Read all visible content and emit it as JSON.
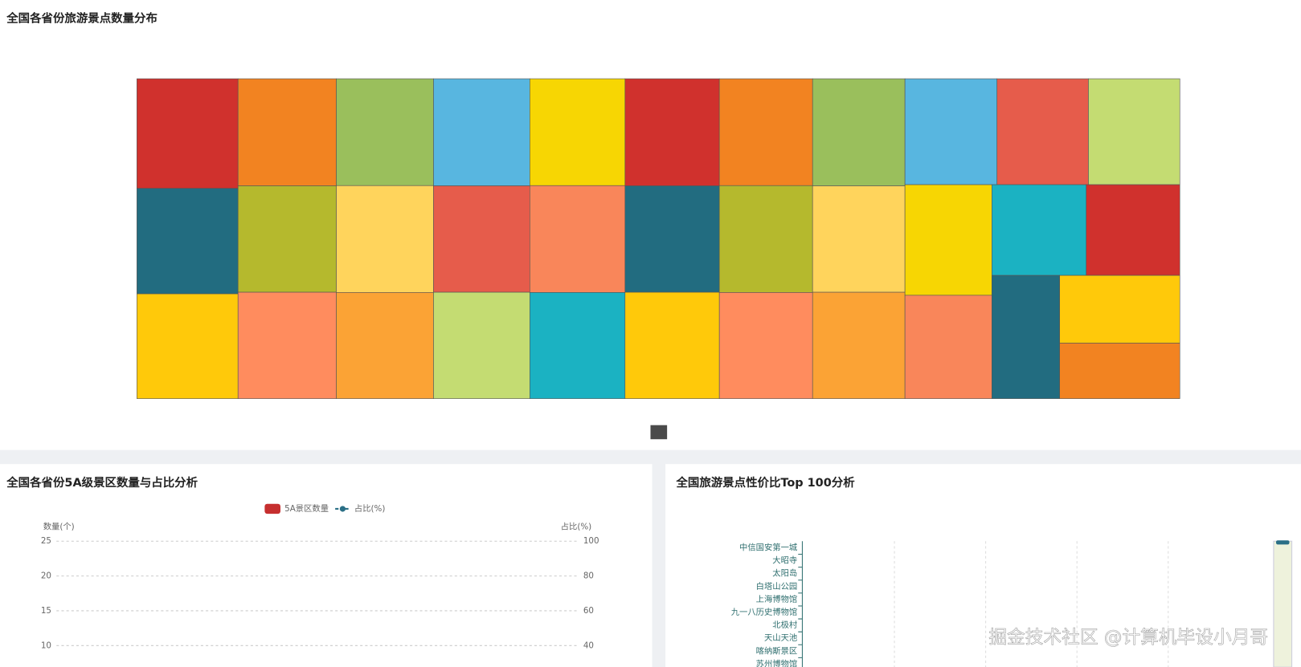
{
  "panels": [
    {
      "chart_data": {
        "type": "treemap",
        "title": "全国各省份旅游景点数量分布",
        "values": [
          158,
          152,
          151,
          150,
          149,
          149,
          148,
          148,
          147,
          147,
          146,
          146,
          145,
          145,
          144,
          144,
          143,
          143,
          142,
          142,
          141,
          141,
          140,
          140,
          139,
          138,
          138,
          137,
          128,
          122,
          121,
          119,
          116,
          95
        ],
        "colors": [
          "#d0312d",
          "#226c80",
          "#ffc90a",
          "#f28321",
          "#b5b92d",
          "#ff8c5e",
          "#9abf5c",
          "#ffd45c",
          "#fba335",
          "#58b6e0",
          "#e65c4b",
          "#c4dc72",
          "#f7d603",
          "#f9865a",
          "#1bb2c2",
          "#d0312d",
          "#226c80",
          "#ffc90a",
          "#f28321",
          "#b5b92d",
          "#ff8c5e",
          "#9abf5c",
          "#ffd45c",
          "#fba335",
          "#58b6e0",
          "#e65c4b",
          "#c4dc72",
          "#f7d603",
          "#f9865a",
          "#1bb2c2",
          "#d0312d",
          "#226c80",
          "#ffc90a",
          "#f28321"
        ]
      }
    },
    {
      "chart_data": {
        "type": "bar",
        "title": "全国各省份5A级景区数量与占比分析",
        "y_axis_label": "数量(个)",
        "y2_axis_label": "占比(%)",
        "categories": [],
        "series": [
          {
            "name": "5A景区数量",
            "color": "#c62f2f",
            "values": []
          },
          {
            "name": "占比(%)",
            "color": "#2a6f86",
            "values": [],
            "axis": "y2",
            "type": "line"
          }
        ],
        "ylim": [
          0,
          25
        ],
        "yticks": [
          10,
          15,
          20,
          25
        ],
        "y2lim": [
          0,
          100
        ],
        "y2ticks": [
          40,
          60,
          80,
          100
        ],
        "grid": true
      }
    },
    {
      "chart_data": {
        "type": "hbar",
        "title": "全国旅游景点性价比Top 100分析",
        "categories": [
          "中信国安第一城",
          "大昭寺",
          "太阳岛",
          "白塔山公园",
          "上海博物馆",
          "九一八历史博物馆",
          "北极村",
          "天山天池",
          "喀纳斯景区",
          "苏州博物馆"
        ]
      }
    }
  ],
  "watermark": "掘金技术社区 @计算机毕设小月哥"
}
